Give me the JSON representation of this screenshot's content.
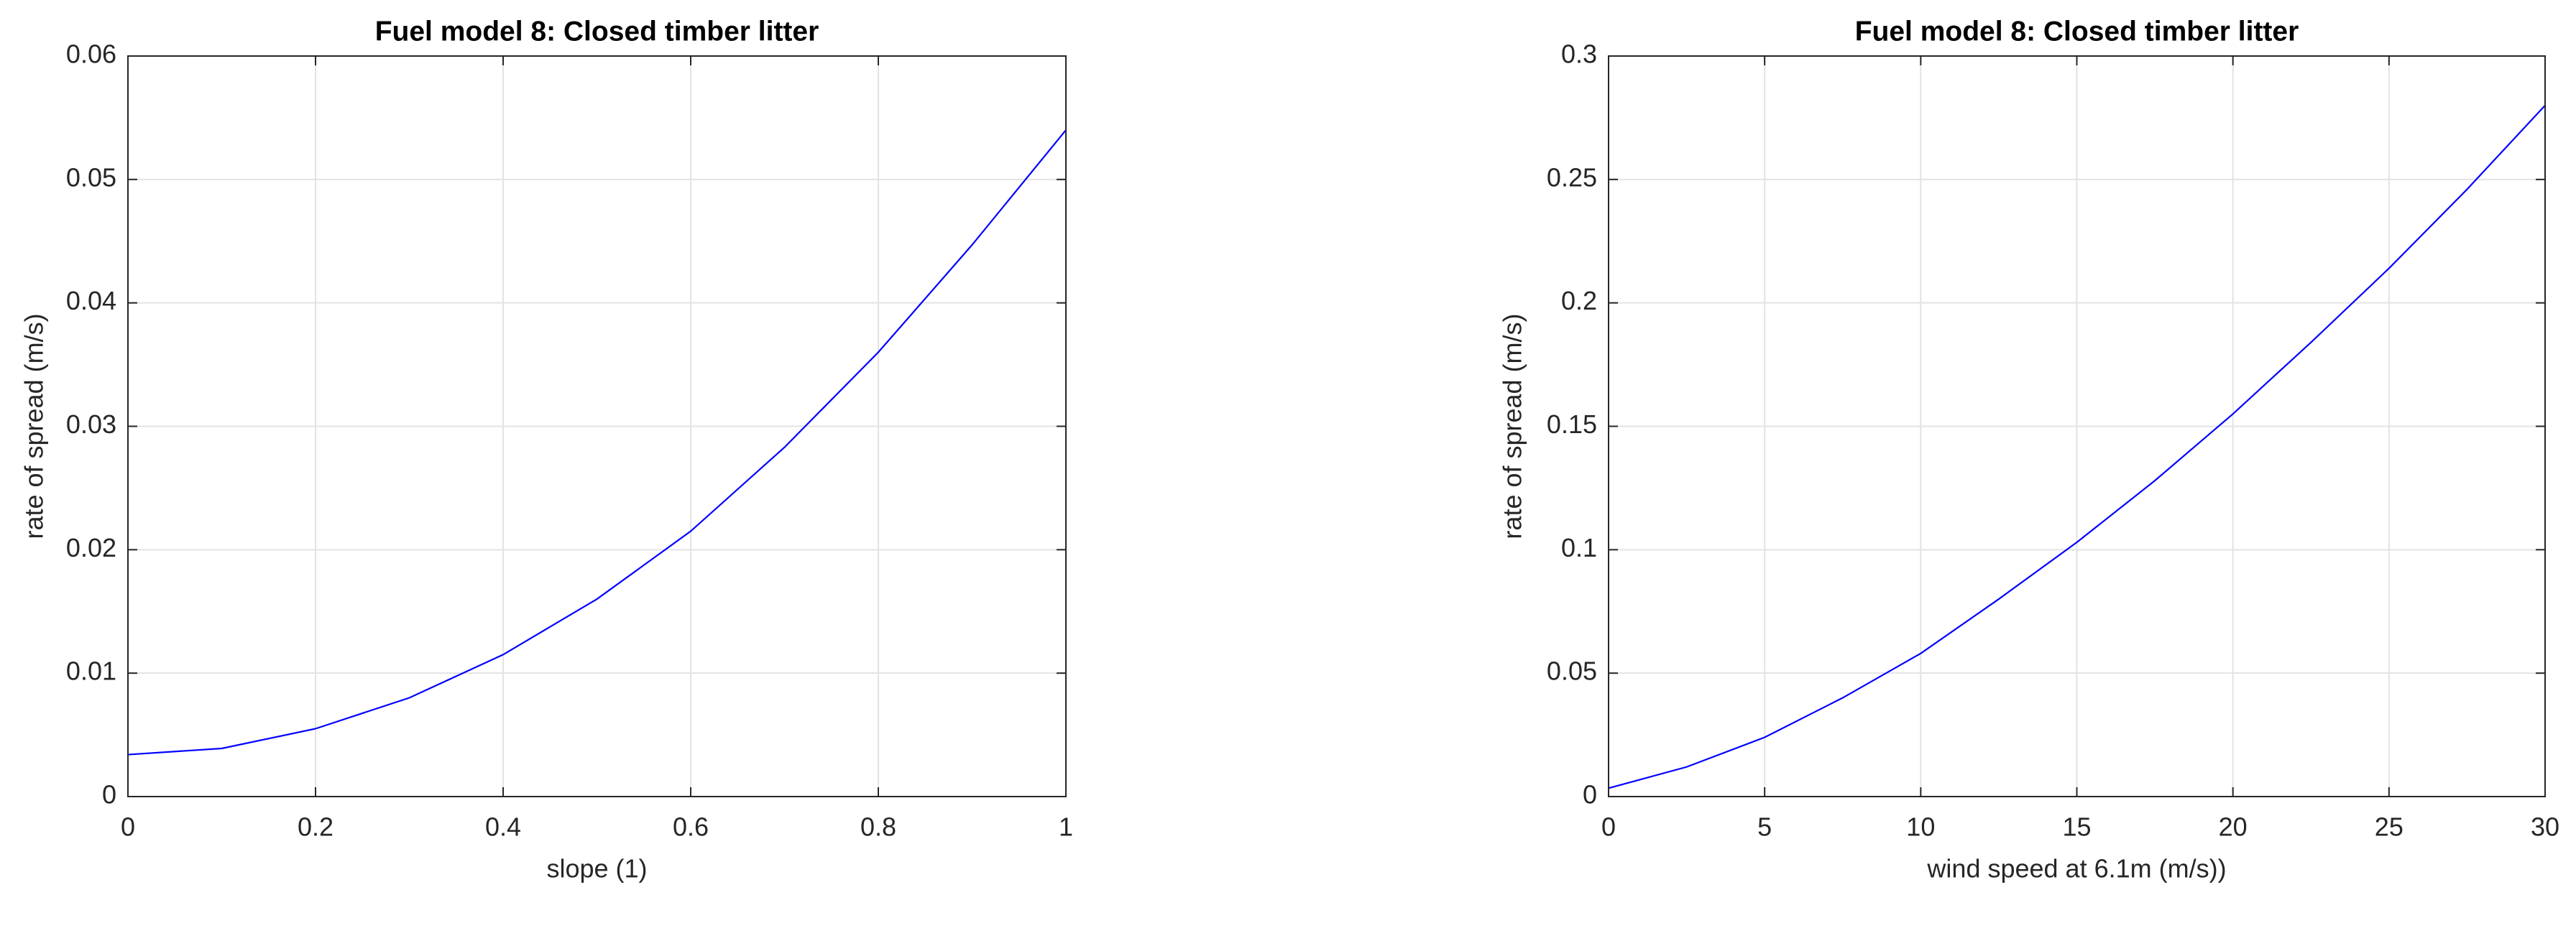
{
  "chart_data": [
    {
      "type": "line",
      "title": "Fuel model 8: Closed timber litter",
      "xlabel": "slope (1)",
      "ylabel": "rate of spread (m/s)",
      "x": [
        0,
        0.1,
        0.2,
        0.3,
        0.4,
        0.5,
        0.6,
        0.7,
        0.8,
        0.9,
        1.0
      ],
      "values": [
        0.0034,
        0.0039,
        0.0055,
        0.008,
        0.0115,
        0.016,
        0.0215,
        0.0283,
        0.036,
        0.0447,
        0.054
      ],
      "color": "#0000ff",
      "xlim": [
        0,
        1
      ],
      "xticks": [
        0,
        0.2,
        0.4,
        0.6,
        0.8,
        1
      ],
      "ylim": [
        0,
        0.06
      ],
      "yticks": [
        0,
        0.01,
        0.02,
        0.03,
        0.04,
        0.05,
        0.06
      ],
      "grid": true
    },
    {
      "type": "line",
      "title": "Fuel model 8: Closed timber litter",
      "xlabel": "wind speed at 6.1m (m/s))",
      "ylabel": "rate of spread (m/s)",
      "x": [
        0,
        2.5,
        5,
        7.5,
        10,
        12.5,
        15,
        17.5,
        20,
        22.5,
        25,
        27.5,
        30
      ],
      "values": [
        0.0034,
        0.012,
        0.024,
        0.04,
        0.058,
        0.08,
        0.103,
        0.128,
        0.155,
        0.184,
        0.214,
        0.246,
        0.28
      ],
      "color": "#0000ff",
      "xlim": [
        0,
        30
      ],
      "xticks": [
        0,
        5,
        10,
        15,
        20,
        25,
        30
      ],
      "ylim": [
        0,
        0.3
      ],
      "yticks": [
        0,
        0.05,
        0.1,
        0.15,
        0.2,
        0.25,
        0.3
      ],
      "grid": true
    }
  ]
}
